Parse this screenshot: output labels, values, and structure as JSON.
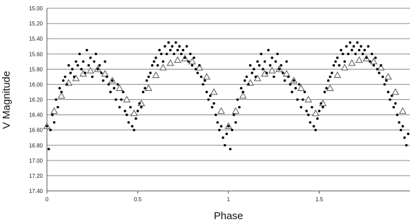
{
  "chart_data": {
    "type": "scatter",
    "title": "",
    "xlabel": "Phase",
    "ylabel": "V Magnitude",
    "xlim": [
      0,
      2.0
    ],
    "ylim": [
      15.0,
      17.4
    ],
    "y_inverted": true,
    "grid": "horizontal",
    "legend": "none",
    "x_ticks": [
      {
        "value": 0,
        "label": "0"
      },
      {
        "value": 0.5,
        "label": "0.5"
      },
      {
        "value": 1,
        "label": "1"
      },
      {
        "value": 1.5,
        "label": "1.5"
      }
    ],
    "y_ticks": [
      {
        "value": 15.0,
        "label": "15.00"
      },
      {
        "value": 15.2,
        "label": "15.20"
      },
      {
        "value": 15.4,
        "label": "15.40"
      },
      {
        "value": 15.6,
        "label": "15.60"
      },
      {
        "value": 15.8,
        "label": "15.80"
      },
      {
        "value": 16.0,
        "label": "16.00"
      },
      {
        "value": 16.2,
        "label": "16.20"
      },
      {
        "value": 16.4,
        "label": "16.40"
      },
      {
        "value": 16.6,
        "label": "16.60"
      },
      {
        "value": 16.8,
        "label": "16.80"
      },
      {
        "value": 17.0,
        "label": "17.00"
      },
      {
        "value": 17.2,
        "label": "17.20"
      },
      {
        "value": 17.4,
        "label": "17.40"
      }
    ],
    "series": [
      {
        "marker": "filled-circle",
        "color": "#000000",
        "x": [
          0.0,
          0.01,
          0.02,
          0.03,
          0.04,
          0.05,
          0.06,
          0.07,
          0.08,
          0.09,
          0.1,
          0.11,
          0.12,
          0.13,
          0.14,
          0.15,
          0.16,
          0.17,
          0.18,
          0.19,
          0.2,
          0.21,
          0.22,
          0.23,
          0.24,
          0.25,
          0.26,
          0.27,
          0.28,
          0.29,
          0.3,
          0.31,
          0.32,
          0.33,
          0.34,
          0.35,
          0.36,
          0.37,
          0.38,
          0.39,
          0.4,
          0.41,
          0.42,
          0.43,
          0.44,
          0.45,
          0.46,
          0.47,
          0.48,
          0.49,
          0.5,
          0.51,
          0.52,
          0.53,
          0.54,
          0.55,
          0.56,
          0.57,
          0.58,
          0.59,
          0.6,
          0.61,
          0.62,
          0.63,
          0.64,
          0.65,
          0.66,
          0.67,
          0.68,
          0.69,
          0.7,
          0.71,
          0.72,
          0.73,
          0.74,
          0.75,
          0.76,
          0.77,
          0.78,
          0.79,
          0.8,
          0.81,
          0.82,
          0.83,
          0.84,
          0.85,
          0.86,
          0.87,
          0.88,
          0.89,
          0.9,
          0.91,
          0.92,
          0.93,
          0.94,
          0.95,
          0.96,
          0.97,
          0.98,
          0.99
        ],
        "y": [
          16.55,
          16.85,
          16.6,
          16.4,
          16.5,
          16.2,
          16.3,
          16.05,
          16.1,
          15.95,
          15.9,
          16.0,
          15.75,
          15.85,
          15.8,
          15.9,
          15.7,
          15.75,
          15.6,
          15.8,
          15.7,
          15.85,
          15.55,
          15.75,
          15.65,
          15.9,
          15.7,
          15.6,
          15.8,
          15.75,
          15.85,
          15.95,
          15.7,
          15.9,
          16.0,
          16.1,
          15.95,
          16.05,
          16.2,
          16.0,
          16.3,
          16.2,
          16.1,
          16.35,
          16.4,
          16.5,
          16.3,
          16.55,
          16.6,
          16.45,
          16.35,
          16.25,
          16.3,
          16.1,
          16.05,
          15.95,
          15.9,
          15.85,
          15.75,
          15.7,
          15.65,
          15.75,
          15.55,
          15.6,
          15.7,
          15.5,
          15.6,
          15.45,
          15.55,
          15.5,
          15.6,
          15.45,
          15.55,
          15.5,
          15.6,
          15.55,
          15.65,
          15.5,
          15.7,
          15.6,
          15.75,
          15.65,
          15.8,
          15.85,
          15.75,
          15.9,
          16.0,
          15.95,
          16.1,
          16.2,
          16.15,
          16.3,
          16.25,
          16.4,
          16.5,
          16.6,
          16.55,
          16.7,
          16.8,
          16.65
        ]
      },
      {
        "marker": "open-triangle",
        "color": "#555555",
        "x": [
          0.0,
          0.04,
          0.08,
          0.12,
          0.16,
          0.2,
          0.24,
          0.28,
          0.32,
          0.36,
          0.4,
          0.44,
          0.48,
          0.52,
          0.56,
          0.6,
          0.64,
          0.68,
          0.72,
          0.76,
          0.8,
          0.84,
          0.88,
          0.92,
          0.96
        ],
        "y": [
          16.55,
          16.35,
          16.15,
          15.98,
          15.92,
          15.86,
          15.82,
          15.8,
          15.86,
          15.95,
          16.05,
          16.2,
          16.38,
          16.25,
          16.05,
          15.88,
          15.78,
          15.72,
          15.68,
          15.66,
          15.7,
          15.78,
          15.9,
          16.1,
          16.35
        ]
      }
    ]
  }
}
